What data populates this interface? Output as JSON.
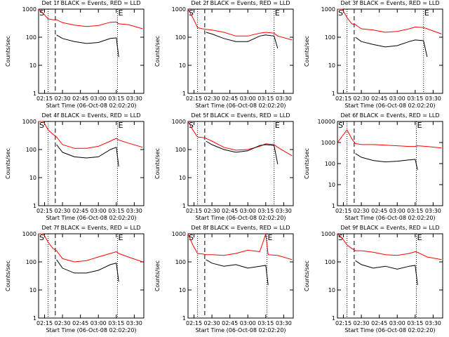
{
  "chart_data": [
    {
      "type": "line",
      "title": "Det 1f BLACK = Events, RED = LLD",
      "x_label": "Start Time (06-Oct-08 02:02:20)",
      "y_label": "Counts/sec",
      "log_y": true,
      "xlim": [
        "02:10",
        "03:38"
      ],
      "ylim": [
        1,
        1000
      ],
      "xticks": [
        "02:15",
        "02:30",
        "02:45",
        "03:00",
        "03:15",
        "03:30"
      ],
      "yticks": [
        1,
        10,
        100,
        1000
      ],
      "x": [
        "02:10",
        "02:14",
        "02:18",
        "02:22",
        "02:25",
        "02:30",
        "02:40",
        "02:50",
        "03:00",
        "03:10",
        "03:15",
        "03:17",
        "03:25",
        "03:37"
      ],
      "series": [
        {
          "color": "#ff0000",
          "values": [
            1000,
            700,
            450,
            420,
            420,
            330,
            270,
            240,
            260,
            340,
            350,
            300,
            280,
            200
          ]
        },
        {
          "color": "#000000",
          "values": [
            null,
            null,
            null,
            null,
            120,
            90,
            70,
            60,
            65,
            90,
            95,
            20,
            null,
            null
          ]
        }
      ],
      "vlines": [
        {
          "x": "02:18",
          "style": "dotted"
        },
        {
          "x": "02:24",
          "style": "dashed"
        },
        {
          "x": "03:16",
          "style": "dotted"
        }
      ],
      "annotations": [
        {
          "text": "S",
          "x": "02:10"
        },
        {
          "text": "E",
          "x": "03:16"
        }
      ]
    },
    {
      "type": "line",
      "title": "Det 2f BLACK = Events, RED = LLD",
      "x_label": "Start Time (06-Oct-08 02:02:20)",
      "y_label": "Counts/sec",
      "log_y": true,
      "xlim": [
        "02:10",
        "03:38"
      ],
      "ylim": [
        1,
        1000
      ],
      "xticks": [
        "02:15",
        "02:30",
        "02:45",
        "03:00",
        "03:15",
        "03:30"
      ],
      "yticks": [
        1,
        10,
        100,
        1000
      ],
      "x": [
        "02:10",
        "02:14",
        "02:18",
        "02:22",
        "02:25",
        "02:30",
        "02:40",
        "02:50",
        "03:00",
        "03:10",
        "03:15",
        "03:22",
        "03:25",
        "03:37"
      ],
      "series": [
        {
          "color": "#ff0000",
          "values": [
            1000,
            500,
            220,
            200,
            190,
            180,
            150,
            110,
            110,
            140,
            150,
            140,
            110,
            80
          ]
        },
        {
          "color": "#000000",
          "values": [
            null,
            null,
            null,
            null,
            150,
            130,
            90,
            70,
            70,
            110,
            120,
            110,
            40,
            null
          ]
        }
      ],
      "vlines": [
        {
          "x": "02:18",
          "style": "dotted"
        },
        {
          "x": "02:24",
          "style": "dashed"
        },
        {
          "x": "03:22",
          "style": "dotted"
        }
      ],
      "annotations": [
        {
          "text": "S",
          "x": "02:10"
        },
        {
          "text": "E",
          "x": "03:22"
        }
      ]
    },
    {
      "type": "line",
      "title": "Det 3f BLACK = Events, RED = LLD",
      "x_label": "Start Time (06-Oct-08 02:02:20)",
      "y_label": "Counts/sec",
      "log_y": true,
      "xlim": [
        "02:10",
        "03:38"
      ],
      "ylim": [
        1,
        1000
      ],
      "xticks": [
        "02:15",
        "02:30",
        "02:45",
        "03:00",
        "03:15",
        "03:30"
      ],
      "yticks": [
        1,
        10,
        100,
        1000
      ],
      "x": [
        "02:10",
        "02:14",
        "02:18",
        "02:22",
        "02:25",
        "02:30",
        "02:40",
        "02:50",
        "03:00",
        "03:10",
        "03:15",
        "03:22",
        "03:25",
        "03:37"
      ],
      "series": [
        {
          "color": "#ff0000",
          "values": [
            1000,
            1000,
            500,
            300,
            280,
            200,
            180,
            150,
            160,
            200,
            230,
            220,
            200,
            130
          ]
        },
        {
          "color": "#000000",
          "values": [
            null,
            null,
            null,
            null,
            100,
            70,
            55,
            45,
            50,
            70,
            80,
            75,
            20,
            null
          ]
        }
      ],
      "vlines": [
        {
          "x": "02:18",
          "style": "dotted"
        },
        {
          "x": "02:24",
          "style": "dashed"
        },
        {
          "x": "03:22",
          "style": "dotted"
        }
      ],
      "annotations": [
        {
          "text": "S",
          "x": "02:10"
        },
        {
          "text": "E",
          "x": "03:22"
        }
      ]
    },
    {
      "type": "line",
      "title": "Det 4f BLACK = Events, RED = LLD",
      "x_label": "Start Time (06-Oct-08 02:02:20)",
      "y_label": "Counts/sec",
      "log_y": true,
      "xlim": [
        "02:10",
        "03:38"
      ],
      "ylim": [
        1,
        1000
      ],
      "xticks": [
        "02:15",
        "02:30",
        "02:45",
        "03:00",
        "03:15",
        "03:30"
      ],
      "yticks": [
        1,
        10,
        100,
        1000
      ],
      "x": [
        "02:10",
        "02:14",
        "02:18",
        "02:22",
        "02:25",
        "02:30",
        "02:40",
        "02:50",
        "03:00",
        "03:10",
        "03:15",
        "03:17",
        "03:25",
        "03:37"
      ],
      "series": [
        {
          "color": "#ff0000",
          "values": [
            1000,
            1000,
            500,
            350,
            280,
            150,
            110,
            110,
            130,
            200,
            250,
            220,
            170,
            120
          ]
        },
        {
          "color": "#000000",
          "values": [
            null,
            null,
            null,
            null,
            150,
            80,
            55,
            50,
            55,
            100,
            120,
            25,
            null,
            null
          ]
        }
      ],
      "vlines": [
        {
          "x": "02:18",
          "style": "dotted"
        },
        {
          "x": "02:24",
          "style": "dashed"
        },
        {
          "x": "03:16",
          "style": "dotted"
        }
      ],
      "annotations": [
        {
          "text": "S",
          "x": "02:10"
        },
        {
          "text": "E",
          "x": "03:16"
        }
      ]
    },
    {
      "type": "line",
      "title": "Det 5f BLACK = Events, RED = LLD",
      "x_label": "Start Time (06-Oct-08 02:02:20)",
      "y_label": "Counts/sec",
      "log_y": true,
      "xlim": [
        "02:10",
        "03:38"
      ],
      "ylim": [
        1,
        1000
      ],
      "xticks": [
        "02:15",
        "02:30",
        "02:45",
        "03:00",
        "03:15",
        "03:30"
      ],
      "yticks": [
        1,
        10,
        100,
        1000
      ],
      "x": [
        "02:10",
        "02:14",
        "02:18",
        "02:22",
        "02:25",
        "02:30",
        "02:40",
        "02:50",
        "03:00",
        "03:10",
        "03:15",
        "03:22",
        "03:25",
        "03:37"
      ],
      "series": [
        {
          "color": "#ff0000",
          "values": [
            1000,
            500,
            280,
            270,
            250,
            200,
            120,
            95,
            100,
            130,
            160,
            150,
            120,
            60
          ]
        },
        {
          "color": "#000000",
          "values": [
            null,
            null,
            null,
            null,
            200,
            150,
            100,
            80,
            90,
            140,
            150,
            140,
            30,
            null
          ]
        }
      ],
      "vlines": [
        {
          "x": "02:18",
          "style": "dotted"
        },
        {
          "x": "02:24",
          "style": "dashed"
        },
        {
          "x": "03:22",
          "style": "dotted"
        }
      ],
      "annotations": [
        {
          "text": "S",
          "x": "02:10"
        },
        {
          "text": "E",
          "x": "03:22"
        }
      ]
    },
    {
      "type": "line",
      "title": "Det 6f BLACK = Events, RED = LLD",
      "x_label": "Start Time (06-Oct-08 02:02:20)",
      "y_label": "Counts/sec",
      "log_y": true,
      "xlim": [
        "02:10",
        "03:38"
      ],
      "ylim": [
        1,
        10000
      ],
      "xticks": [
        "02:15",
        "02:30",
        "02:45",
        "03:00",
        "03:15",
        "03:30"
      ],
      "yticks": [
        1,
        10,
        100,
        1000,
        10000
      ],
      "x": [
        "02:10",
        "02:14",
        "02:18",
        "02:22",
        "02:25",
        "02:30",
        "02:40",
        "02:50",
        "03:00",
        "03:10",
        "03:15",
        "03:17",
        "03:25",
        "03:37"
      ],
      "series": [
        {
          "color": "#ff0000",
          "values": [
            1000,
            2000,
            4000,
            1500,
            900,
            800,
            800,
            750,
            700,
            650,
            650,
            700,
            650,
            550
          ]
        },
        {
          "color": "#000000",
          "values": [
            null,
            null,
            null,
            null,
            300,
            200,
            140,
            120,
            130,
            150,
            160,
            50,
            null,
            null
          ]
        }
      ],
      "vlines": [
        {
          "x": "02:18",
          "style": "dotted"
        },
        {
          "x": "02:24",
          "style": "dashed"
        },
        {
          "x": "03:16",
          "style": "dotted"
        }
      ],
      "annotations": [
        {
          "text": "S",
          "x": "02:10"
        },
        {
          "text": "E",
          "x": "03:16"
        }
      ]
    },
    {
      "type": "line",
      "title": "Det 7f BLACK = Events, RED = LLD",
      "x_label": "Start Time (06-Oct-08 02:02:20)",
      "y_label": "Counts/sec",
      "log_y": true,
      "xlim": [
        "02:10",
        "03:38"
      ],
      "ylim": [
        1,
        1000
      ],
      "xticks": [
        "02:15",
        "02:30",
        "02:45",
        "03:00",
        "03:15",
        "03:30"
      ],
      "yticks": [
        1,
        10,
        100,
        1000
      ],
      "x": [
        "02:10",
        "02:14",
        "02:18",
        "02:22",
        "02:25",
        "02:30",
        "02:40",
        "02:50",
        "03:00",
        "03:10",
        "03:15",
        "03:17",
        "03:25",
        "03:37"
      ],
      "series": [
        {
          "color": "#ff0000",
          "values": [
            1000,
            1000,
            500,
            300,
            250,
            130,
            100,
            110,
            150,
            200,
            230,
            200,
            150,
            100
          ]
        },
        {
          "color": "#000000",
          "values": [
            null,
            null,
            null,
            null,
            120,
            60,
            40,
            40,
            50,
            80,
            90,
            20,
            null,
            null
          ]
        }
      ],
      "vlines": [
        {
          "x": "02:18",
          "style": "dotted"
        },
        {
          "x": "02:24",
          "style": "dashed"
        },
        {
          "x": "03:16",
          "style": "dotted"
        }
      ],
      "annotations": [
        {
          "text": "S",
          "x": "02:10"
        },
        {
          "text": "E",
          "x": "03:16"
        }
      ]
    },
    {
      "type": "line",
      "title": "Det 8f BLACK = Events, RED = LLD",
      "x_label": "Start Time (06-Oct-08 02:02:20)",
      "y_label": "Counts/sec",
      "log_y": true,
      "xlim": [
        "02:10",
        "03:38"
      ],
      "ylim": [
        1,
        1000
      ],
      "xticks": [
        "02:15",
        "02:30",
        "02:45",
        "03:00",
        "03:15",
        "03:30"
      ],
      "yticks": [
        1,
        10,
        100,
        1000
      ],
      "x": [
        "02:10",
        "02:14",
        "02:18",
        "02:22",
        "02:25",
        "02:30",
        "02:40",
        "02:50",
        "03:00",
        "03:10",
        "03:15",
        "03:17",
        "03:25",
        "03:37"
      ],
      "series": [
        {
          "color": "#ff0000",
          "values": [
            1000,
            400,
            200,
            190,
            180,
            180,
            170,
            200,
            260,
            230,
            1000,
            180,
            170,
            120
          ]
        },
        {
          "color": "#000000",
          "values": [
            null,
            null,
            null,
            null,
            120,
            90,
            70,
            80,
            60,
            70,
            75,
            15,
            null,
            null
          ]
        }
      ],
      "vlines": [
        {
          "x": "02:18",
          "style": "dotted"
        },
        {
          "x": "02:24",
          "style": "dashed"
        },
        {
          "x": "03:16",
          "style": "dotted"
        }
      ],
      "annotations": [
        {
          "text": "S",
          "x": "02:10"
        },
        {
          "text": "E",
          "x": "03:16"
        }
      ]
    },
    {
      "type": "line",
      "title": "Det 9f BLACK = Events, RED = LLD",
      "x_label": "Start Time (06-Oct-08 02:02:20)",
      "y_label": "Counts/sec",
      "log_y": true,
      "xlim": [
        "02:10",
        "03:38"
      ],
      "ylim": [
        1,
        1000
      ],
      "xticks": [
        "02:15",
        "02:30",
        "02:45",
        "03:00",
        "03:15",
        "03:30"
      ],
      "yticks": [
        1,
        10,
        100,
        1000
      ],
      "x": [
        "02:10",
        "02:14",
        "02:18",
        "02:22",
        "02:25",
        "02:30",
        "02:40",
        "02:50",
        "03:00",
        "03:10",
        "03:15",
        "03:17",
        "03:25",
        "03:37"
      ],
      "series": [
        {
          "color": "#ff0000",
          "values": [
            1000,
            700,
            400,
            300,
            250,
            250,
            220,
            180,
            170,
            200,
            230,
            220,
            150,
            120
          ]
        },
        {
          "color": "#000000",
          "values": [
            null,
            null,
            null,
            null,
            110,
            80,
            60,
            70,
            55,
            70,
            75,
            15,
            null,
            null
          ]
        }
      ],
      "vlines": [
        {
          "x": "02:18",
          "style": "dotted"
        },
        {
          "x": "02:24",
          "style": "dashed"
        },
        {
          "x": "03:16",
          "style": "dotted"
        }
      ],
      "annotations": [
        {
          "text": "S",
          "x": "02:10"
        },
        {
          "text": "E",
          "x": "03:16"
        }
      ]
    }
  ]
}
